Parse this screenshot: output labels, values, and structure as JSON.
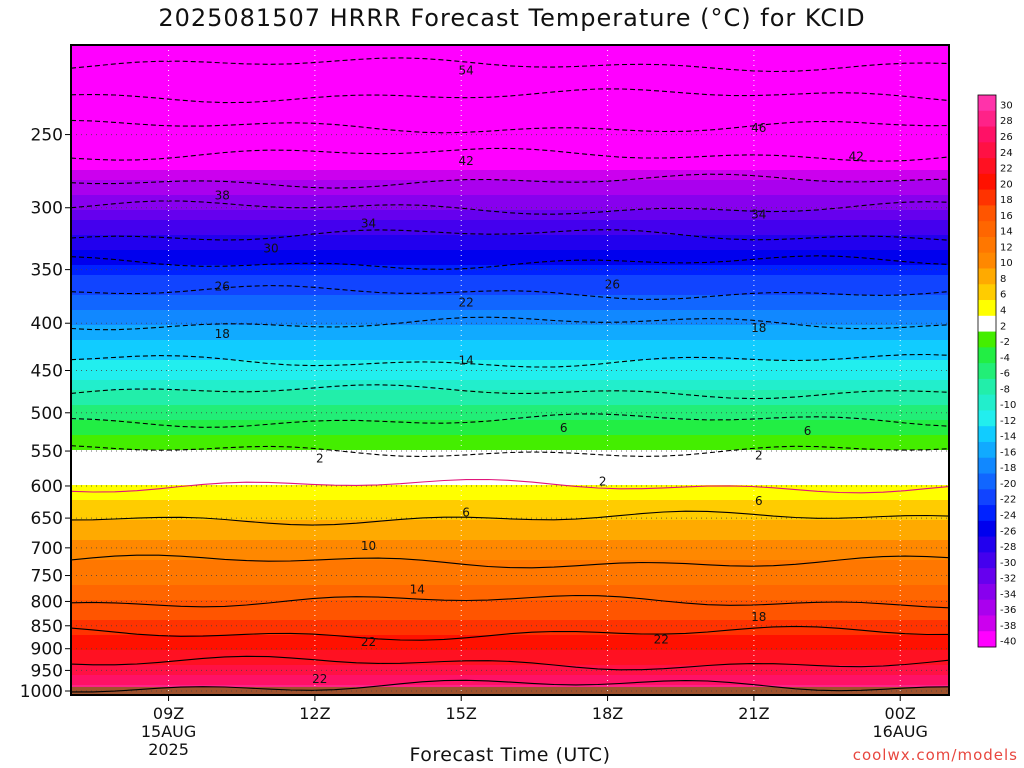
{
  "title": "2025081507 HRRR Forecast Temperature (°C) for KCID",
  "credit": "coolwx.com/models",
  "chart_data": {
    "type": "heatmap",
    "title": "2025081507 HRRR Forecast Temperature (°C) for KCID",
    "xlabel": "Forecast Time (UTC)",
    "ylabel": "",
    "y_scale": "log-pressure",
    "ylim": [
      1010,
      200
    ],
    "x_range_hours": [
      7,
      25
    ],
    "y_ticks": [
      250,
      300,
      350,
      400,
      450,
      500,
      550,
      600,
      650,
      700,
      750,
      800,
      850,
      900,
      950,
      1000
    ],
    "x_ticks": [
      {
        "hour": 9,
        "label": "09Z",
        "sub": [
          "15AUG",
          "2025"
        ]
      },
      {
        "hour": 12,
        "label": "12Z",
        "sub": []
      },
      {
        "hour": 15,
        "label": "15Z",
        "sub": []
      },
      {
        "hour": 18,
        "label": "18Z",
        "sub": []
      },
      {
        "hour": 21,
        "label": "21Z",
        "sub": []
      },
      {
        "hour": 24,
        "label": "00Z",
        "sub": [
          "16AUG"
        ]
      }
    ],
    "temperature_profile": [
      {
        "pressure": 1000,
        "temp": 27
      },
      {
        "pressure": 950,
        "temp": 23
      },
      {
        "pressure": 900,
        "temp": 20
      },
      {
        "pressure": 850,
        "temp": 17
      },
      {
        "pressure": 800,
        "temp": 14
      },
      {
        "pressure": 750,
        "temp": 11
      },
      {
        "pressure": 700,
        "temp": 9
      },
      {
        "pressure": 650,
        "temp": 6
      },
      {
        "pressure": 600,
        "temp": 2
      },
      {
        "pressure": 570,
        "temp": 0
      },
      {
        "pressure": 550,
        "temp": -2
      },
      {
        "pressure": 500,
        "temp": -7
      },
      {
        "pressure": 450,
        "temp": -13
      },
      {
        "pressure": 400,
        "temp": -18
      },
      {
        "pressure": 350,
        "temp": -25
      },
      {
        "pressure": 300,
        "temp": -34
      },
      {
        "pressure": 250,
        "temp": -45
      },
      {
        "pressure": 210,
        "temp": -54
      }
    ],
    "contour_labels": [
      {
        "value": "54",
        "hour": 15.1,
        "pressure": 213
      },
      {
        "value": "46",
        "hour": 21.1,
        "pressure": 246
      },
      {
        "value": "42",
        "hour": 15.1,
        "pressure": 267
      },
      {
        "value": "42",
        "hour": 23.1,
        "pressure": 264
      },
      {
        "value": "38",
        "hour": 10.1,
        "pressure": 291
      },
      {
        "value": "34",
        "hour": 13.1,
        "pressure": 312
      },
      {
        "value": "34",
        "hour": 21.1,
        "pressure": 305
      },
      {
        "value": "30",
        "hour": 11.1,
        "pressure": 332
      },
      {
        "value": "26",
        "hour": 10.1,
        "pressure": 365
      },
      {
        "value": "26",
        "hour": 18.1,
        "pressure": 363
      },
      {
        "value": "22",
        "hour": 15.1,
        "pressure": 380
      },
      {
        "value": "18",
        "hour": 10.1,
        "pressure": 411
      },
      {
        "value": "18",
        "hour": 21.1,
        "pressure": 405
      },
      {
        "value": "14",
        "hour": 15.1,
        "pressure": 439
      },
      {
        "value": "6",
        "hour": 17.1,
        "pressure": 519
      },
      {
        "value": "6",
        "hour": 22.1,
        "pressure": 523
      },
      {
        "value": "2",
        "hour": 12.1,
        "pressure": 560
      },
      {
        "value": "2",
        "hour": 21.1,
        "pressure": 556
      },
      {
        "value": "2",
        "hour": 17.9,
        "pressure": 593
      },
      {
        "value": "6",
        "hour": 15.1,
        "pressure": 641
      },
      {
        "value": "6",
        "hour": 21.1,
        "pressure": 623
      },
      {
        "value": "10",
        "hour": 13.1,
        "pressure": 697
      },
      {
        "value": "14",
        "hour": 14.1,
        "pressure": 777
      },
      {
        "value": "18",
        "hour": 21.1,
        "pressure": 832
      },
      {
        "value": "22",
        "hour": 13.1,
        "pressure": 885
      },
      {
        "value": "22",
        "hour": 19.1,
        "pressure": 880
      },
      {
        "value": "22",
        "hour": 12.1,
        "pressure": 971
      }
    ],
    "colorbar": {
      "labels": [
        "30",
        "28",
        "26",
        "24",
        "22",
        "20",
        "18",
        "16",
        "14",
        "12",
        "10",
        "8",
        "6",
        "4",
        "2",
        "-2",
        "-4",
        "-6",
        "-8",
        "-10",
        "-12",
        "-14",
        "-16",
        "-18",
        "-20",
        "-22",
        "-24",
        "-26",
        "-28",
        "-30",
        "-32",
        "-34",
        "-36",
        "-38",
        "-40"
      ],
      "colors": [
        "#ff33aa",
        "#ff2288",
        "#ff1166",
        "#ff1144",
        "#ff1122",
        "#ff1100",
        "#ff3300",
        "#ff5500",
        "#ff6600",
        "#ff7700",
        "#ff8800",
        "#ffaa00",
        "#ffcc00",
        "#ffff00",
        "#ffffff",
        "#44ee00",
        "#22ee44",
        "#22ee77",
        "#22eeaa",
        "#22eecc",
        "#22eeee",
        "#11ccff",
        "#11aaff",
        "#1188ff",
        "#1166ff",
        "#1144ff",
        "#0022ff",
        "#0000ee",
        "#2200ee",
        "#4400ee",
        "#6600ee",
        "#8800ee",
        "#aa00ee",
        "#cc00ee",
        "#ff00ff"
      ]
    },
    "ground_color": "#a0522d"
  }
}
